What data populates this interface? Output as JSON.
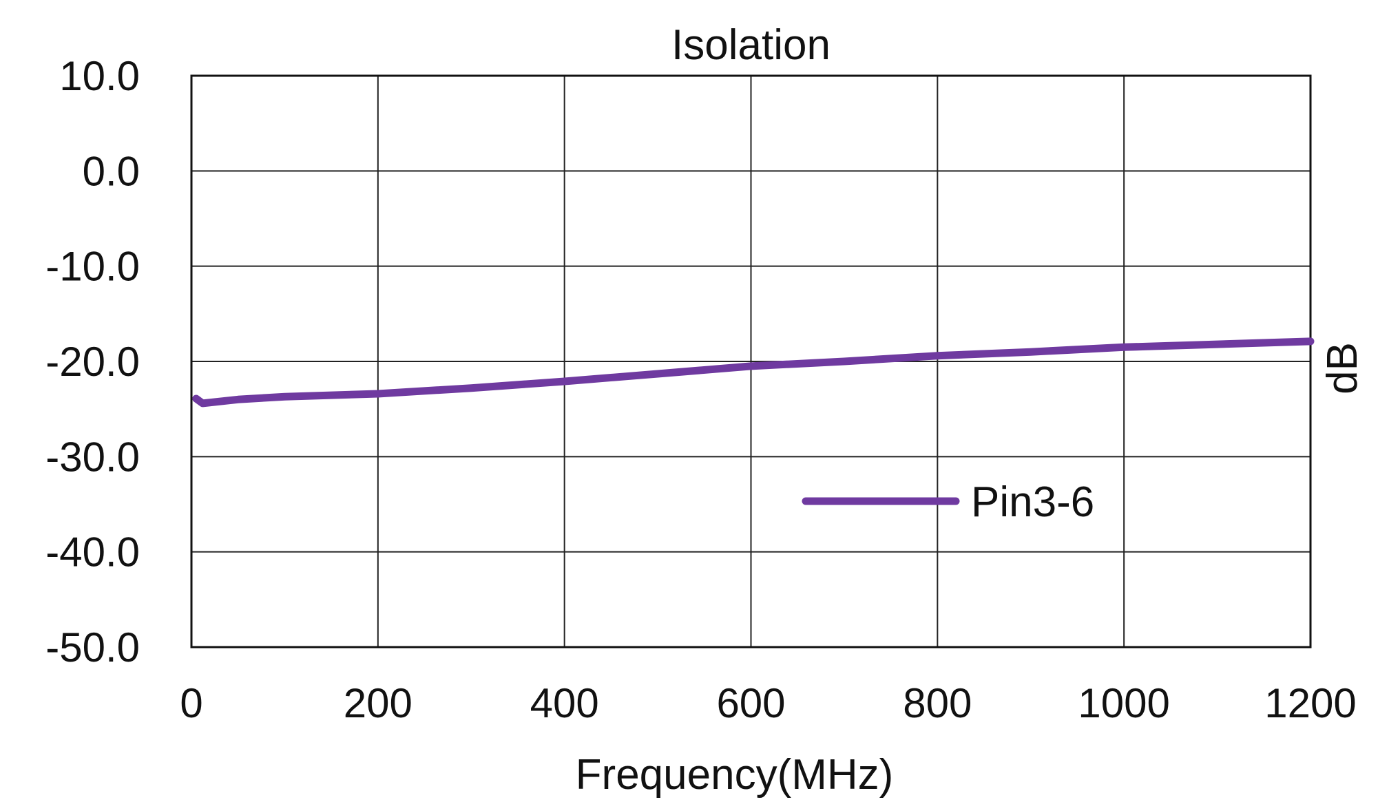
{
  "chart_data": {
    "type": "line",
    "title": "Isolation",
    "xlabel": "Frequency(MHz)",
    "ylabel": "dB",
    "xlim": [
      0,
      1200
    ],
    "ylim": [
      -50,
      10
    ],
    "x_ticks": [
      "0",
      "200",
      "400",
      "600",
      "800",
      "1000",
      "1200"
    ],
    "y_ticks": [
      "10.0",
      "0.0",
      "-10.0",
      "-20.0",
      "-30.0",
      "-40.0",
      "-50.0"
    ],
    "grid": true,
    "legend_position": "lower-center-right",
    "series": [
      {
        "name": "Pin3-6",
        "color": "#6f3aa0",
        "x": [
          5,
          12,
          50,
          100,
          200,
          300,
          400,
          500,
          600,
          700,
          800,
          900,
          1000,
          1100,
          1200
        ],
        "y": [
          -23.9,
          -24.4,
          -24.0,
          -23.7,
          -23.4,
          -22.8,
          -22.1,
          -21.3,
          -20.5,
          -20.0,
          -19.4,
          -19.0,
          -18.5,
          -18.2,
          -17.9
        ]
      }
    ]
  }
}
